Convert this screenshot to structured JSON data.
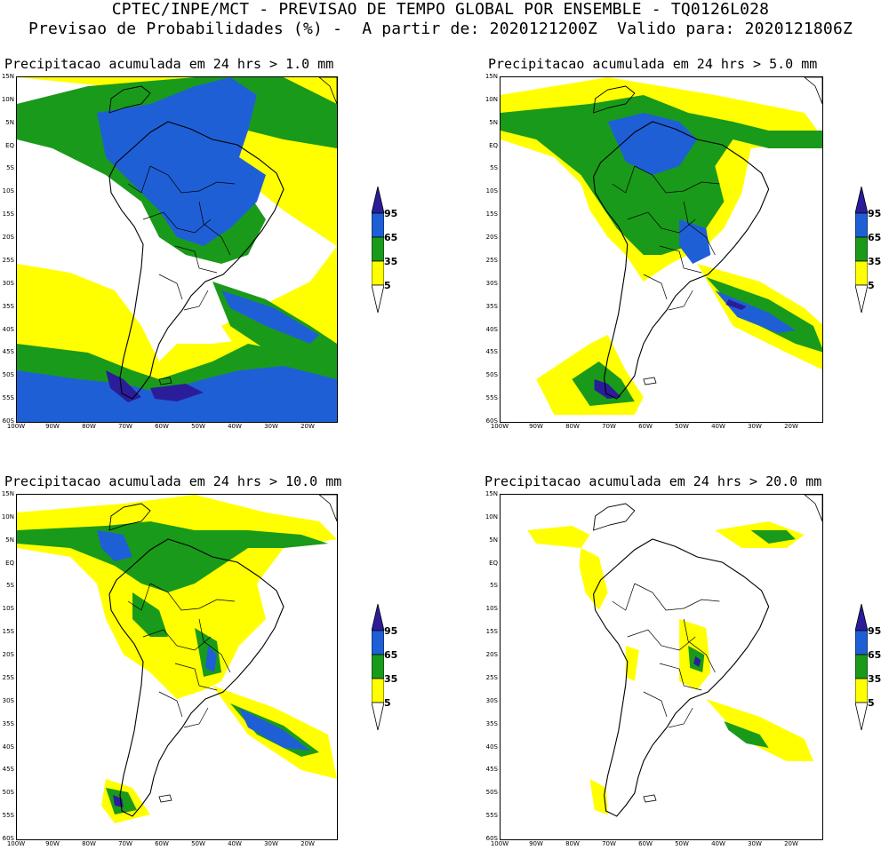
{
  "header": {
    "line1": "CPTEC/INPE/MCT - PREVISAO DE TEMPO GLOBAL POR ENSEMBLE - TQ0126L028",
    "line2": "Previsao de Probabilidades (%) -  A partir de: 2020121200Z  Valido para: 2020121806Z"
  },
  "colors": {
    "yellow": "#ffff00",
    "green": "#1a9a1a",
    "blue": "#1f5fd6",
    "navy": "#2b1d9a",
    "coast": "#000000"
  },
  "axes": {
    "lat_labels": [
      "15N",
      "10N",
      "5N",
      "EQ",
      "5S",
      "10S",
      "15S",
      "20S",
      "25S",
      "30S",
      "35S",
      "40S",
      "45S",
      "50S",
      "55S",
      "60S"
    ],
    "lon_labels": [
      "100W",
      "90W",
      "80W",
      "70W",
      "60W",
      "50W",
      "40W",
      "30W",
      "20W"
    ]
  },
  "legend": {
    "levels": [
      "95",
      "65",
      "35",
      "5"
    ]
  },
  "panels": [
    {
      "title": "Precipitacao acumulada em 24 hrs > 1.0 mm",
      "threshold_mm": 1.0
    },
    {
      "title": "Precipitacao acumulada em 24 hrs > 5.0 mm",
      "threshold_mm": 5.0
    },
    {
      "title": "Precipitacao acumulada em 24 hrs > 10.0 mm",
      "threshold_mm": 10.0
    },
    {
      "title": "Precipitacao acumulada em 24 hrs > 20.0 mm",
      "threshold_mm": 20.0
    }
  ]
}
